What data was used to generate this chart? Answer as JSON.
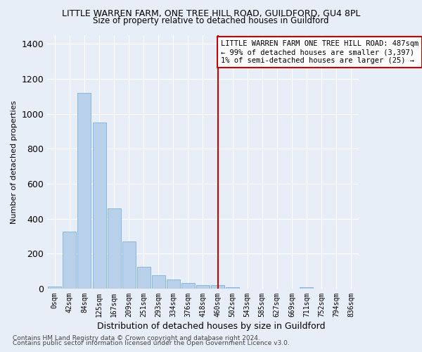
{
  "title": "LITTLE WARREN FARM, ONE TREE HILL ROAD, GUILDFORD, GU4 8PL",
  "subtitle": "Size of property relative to detached houses in Guildford",
  "xlabel": "Distribution of detached houses by size in Guildford",
  "ylabel": "Number of detached properties",
  "bar_color": "#b8d0ea",
  "bar_edge_color": "#6aaad4",
  "background_color": "#e8eef8",
  "grid_color": "#ffffff",
  "categories": [
    "0sqm",
    "42sqm",
    "84sqm",
    "125sqm",
    "167sqm",
    "209sqm",
    "251sqm",
    "293sqm",
    "334sqm",
    "376sqm",
    "418sqm",
    "460sqm",
    "502sqm",
    "543sqm",
    "585sqm",
    "627sqm",
    "669sqm",
    "711sqm",
    "752sqm",
    "794sqm",
    "836sqm"
  ],
  "values": [
    10,
    325,
    1120,
    950,
    460,
    270,
    125,
    78,
    50,
    30,
    20,
    20,
    8,
    0,
    0,
    0,
    0,
    7,
    0,
    0,
    0
  ],
  "ylim": [
    0,
    1450
  ],
  "yticks": [
    0,
    200,
    400,
    600,
    800,
    1000,
    1200,
    1400
  ],
  "vline_x_index": 11,
  "vline_color": "#cc0000",
  "annotation_text": "LITTLE WARREN FARM ONE TREE HILL ROAD: 487sqm\n← 99% of detached houses are smaller (3,397)\n1% of semi-detached houses are larger (25) →",
  "annotation_box_color": "#ffffff",
  "annotation_box_edge": "#cc0000",
  "footnote1": "Contains HM Land Registry data © Crown copyright and database right 2024.",
  "footnote2": "Contains public sector information licensed under the Open Government Licence v3.0."
}
